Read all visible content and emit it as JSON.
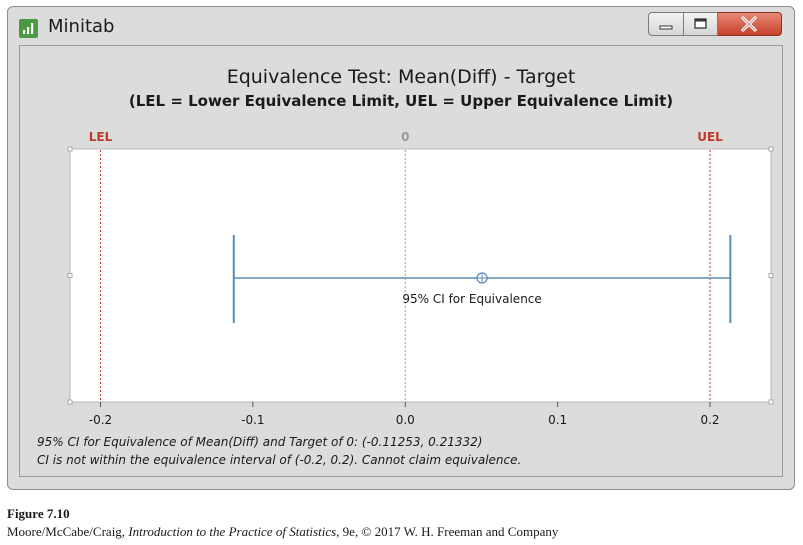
{
  "window": {
    "title": "Minitab",
    "icon": "minitab-bar-chart-icon",
    "controls": [
      "minimize-icon",
      "maximize-icon",
      "close-icon"
    ]
  },
  "chart_data": {
    "type": "interval",
    "title": "Equivalence Test: Mean(Diff) - Target",
    "subtitle": "(LEL = Lower Equivalence Limit, UEL = Upper Equivalence Limit)",
    "xlim": [
      -0.22,
      0.24
    ],
    "xticks": [
      -0.2,
      -0.1,
      0.0,
      0.1,
      0.2
    ],
    "xtick_labels": [
      "-0.2",
      "-0.1",
      "0.0",
      "0.1",
      "0.2"
    ],
    "reference_lines": [
      {
        "label": "LEL",
        "x": -0.2,
        "color": "#c0392b"
      },
      {
        "label": "0",
        "x": 0.0,
        "color": "#999999"
      },
      {
        "label": "UEL",
        "x": 0.2,
        "color": "#c0392b"
      }
    ],
    "interval": {
      "label": "95% CI for Equivalence",
      "lower": -0.11253,
      "upper": 0.21332,
      "estimate": 0.0504,
      "color": "#5b8db8"
    },
    "grid": false
  },
  "summary": {
    "line1": "95% CI for Equivalence of Mean(Diff) and Target of 0: (-0.11253, 0.21332)",
    "line2": "CI is not within the equivalence interval of (-0.2, 0.2). Cannot claim equivalence."
  },
  "caption": {
    "figure": "Figure 7.10",
    "authors": "Moore/McCabe/Craig, ",
    "book": "Introduction to the Practice of Statistics",
    "rest": ", 9e, © 2017 W. H. Freeman and Company"
  }
}
